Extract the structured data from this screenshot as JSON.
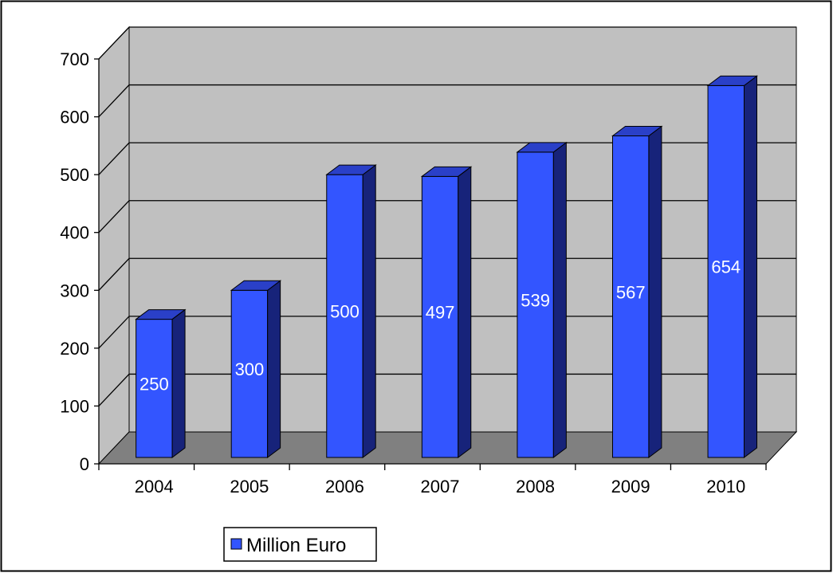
{
  "chart_data": {
    "type": "bar",
    "categories": [
      "2004",
      "2005",
      "2006",
      "2007",
      "2008",
      "2009",
      "2010"
    ],
    "series": [
      {
        "name": "Million Euro",
        "values": [
          250,
          300,
          500,
          497,
          539,
          567,
          654
        ]
      }
    ],
    "data_labels": [
      "250",
      "300",
      "500",
      "497",
      "539",
      "567",
      "654"
    ],
    "yticks": [
      "0",
      "100",
      "200",
      "300",
      "400",
      "500",
      "600",
      "700"
    ],
    "ylim": [
      0,
      700
    ],
    "grid": true,
    "legend_position": "bottom-left",
    "style": "3d-column"
  },
  "colors": {
    "bar_front": "#3355ff",
    "bar_side": "#17237a",
    "bar_top": "#2a40c8",
    "wall": "#c0c0c0",
    "floor": "#808080",
    "label_text": "#ffffff"
  }
}
